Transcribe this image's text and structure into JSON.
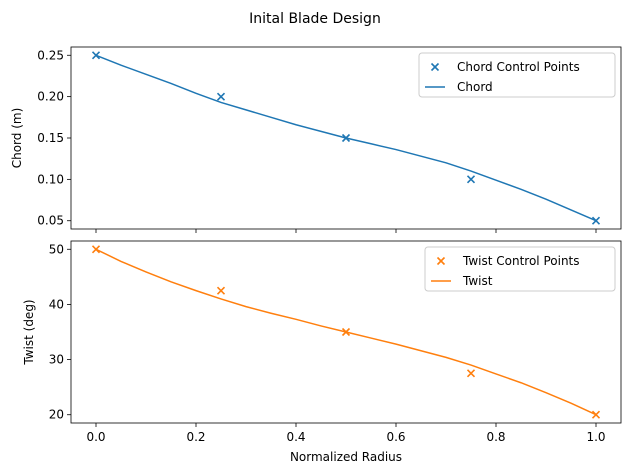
{
  "figure": {
    "title": "Inital Blade Design",
    "shared_xlabel": "Normalized Radius"
  },
  "chart_data": [
    {
      "type": "line",
      "title": "",
      "xlabel": "",
      "ylabel": "Chord (m)",
      "xlim": [
        -0.05,
        1.05
      ],
      "ylim": [
        0.04,
        0.26
      ],
      "xticks": [
        0.0,
        0.2,
        0.4,
        0.6,
        0.8,
        1.0
      ],
      "xtick_labels_visible": false,
      "yticks": [
        0.05,
        0.1,
        0.15,
        0.2,
        0.25
      ],
      "ytick_labels": [
        "0.05",
        "0.10",
        "0.15",
        "0.20",
        "0.25"
      ],
      "grid": false,
      "legend_position": "upper-right",
      "color": "#1f77b4",
      "series": [
        {
          "name": "Chord Control Points",
          "kind": "scatter",
          "marker": "x",
          "x": [
            0.0,
            0.25,
            0.5,
            0.75,
            1.0
          ],
          "y": [
            0.25,
            0.2,
            0.15,
            0.1,
            0.05
          ]
        },
        {
          "name": "Chord",
          "kind": "line",
          "x": [
            0.0,
            0.05,
            0.1,
            0.15,
            0.2,
            0.25,
            0.3,
            0.35,
            0.4,
            0.45,
            0.5,
            0.55,
            0.6,
            0.65,
            0.7,
            0.75,
            0.8,
            0.85,
            0.9,
            0.95,
            1.0
          ],
          "y": [
            0.25,
            0.238,
            0.227,
            0.216,
            0.204,
            0.193,
            0.184,
            0.175,
            0.166,
            0.158,
            0.15,
            0.143,
            0.136,
            0.128,
            0.12,
            0.11,
            0.099,
            0.088,
            0.076,
            0.063,
            0.05
          ]
        }
      ]
    },
    {
      "type": "line",
      "title": "",
      "xlabel": "Normalized Radius",
      "ylabel": "Twist (deg)",
      "xlim": [
        -0.05,
        1.05
      ],
      "ylim": [
        18.5,
        51.5
      ],
      "xticks": [
        0.0,
        0.2,
        0.4,
        0.6,
        0.8,
        1.0
      ],
      "xtick_labels": [
        "0.0",
        "0.2",
        "0.4",
        "0.6",
        "0.8",
        "1.0"
      ],
      "yticks": [
        20,
        30,
        40,
        50
      ],
      "ytick_labels": [
        "20",
        "30",
        "40",
        "50"
      ],
      "grid": false,
      "legend_position": "upper-right",
      "color": "#ff7f0e",
      "series": [
        {
          "name": "Twist Control Points",
          "kind": "scatter",
          "marker": "x",
          "x": [
            0.0,
            0.25,
            0.5,
            0.75,
            1.0
          ],
          "y": [
            50.0,
            42.5,
            35.0,
            27.5,
            20.0
          ]
        },
        {
          "name": "Twist",
          "kind": "line",
          "x": [
            0.0,
            0.05,
            0.1,
            0.15,
            0.2,
            0.25,
            0.3,
            0.35,
            0.4,
            0.45,
            0.5,
            0.55,
            0.6,
            0.65,
            0.7,
            0.75,
            0.8,
            0.85,
            0.9,
            0.95,
            1.0
          ],
          "y": [
            50.0,
            47.8,
            45.9,
            44.1,
            42.5,
            41.0,
            39.6,
            38.4,
            37.3,
            36.1,
            35.0,
            33.9,
            32.8,
            31.6,
            30.4,
            29.0,
            27.4,
            25.8,
            24.0,
            22.1,
            20.0
          ]
        }
      ]
    }
  ]
}
